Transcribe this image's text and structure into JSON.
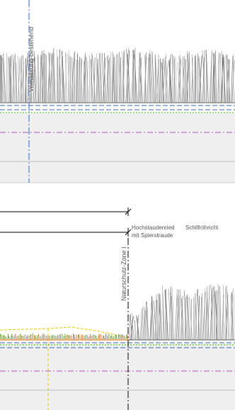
{
  "labels": {
    "drainage": "Vernässung bestehend",
    "zone": "Naturschutz-Zone I",
    "habitat1_line1": "Hochstaudenried",
    "habitat1_line2": "mit Spierstraude",
    "habitat2": "Schilfröhricht"
  },
  "colors": {
    "background": "#ffffff",
    "reed": "#9a9a9a",
    "reed_dark": "#6f6f6f",
    "ground_band": "#efefef",
    "blue_dash": "#3a66b3",
    "green_dot": "#5cbf3a",
    "purple_dashdot": "#b05ab5",
    "yellow_dash": "#e8c800",
    "orange_line": "#e07a2a",
    "black": "#000000",
    "grey_line": "#bdbdbd",
    "vegetation_green": "#5c8f2b",
    "vegetation_orange": "#c26a2a"
  }
}
